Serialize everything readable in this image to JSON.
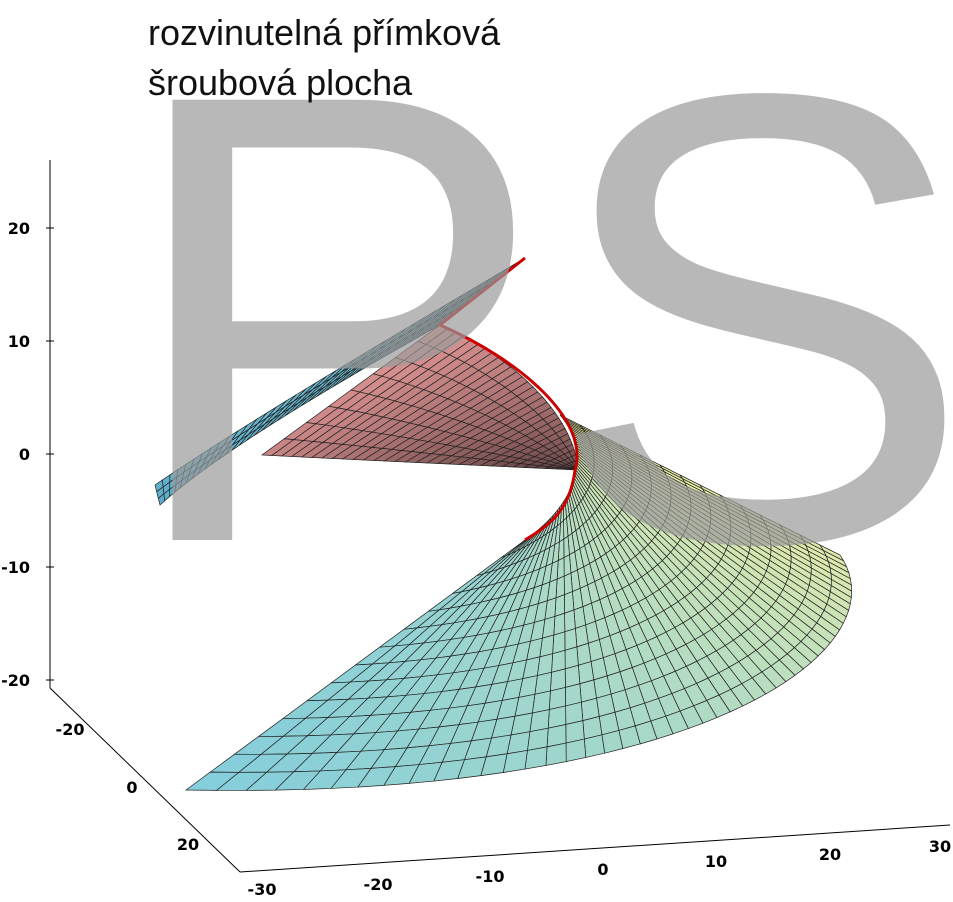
{
  "title": [
    "rozvinutelná přímková",
    "šroubová plocha"
  ],
  "watermark": "PS",
  "axes": {
    "z": {
      "ticks": [
        "20",
        "10",
        "0",
        "-10",
        "-20"
      ]
    },
    "y": {
      "ticks": [
        "-20",
        "0",
        "20"
      ]
    },
    "x": {
      "ticks": [
        "-30",
        "-20",
        "-10",
        "0",
        "10",
        "20",
        "30"
      ]
    }
  }
}
